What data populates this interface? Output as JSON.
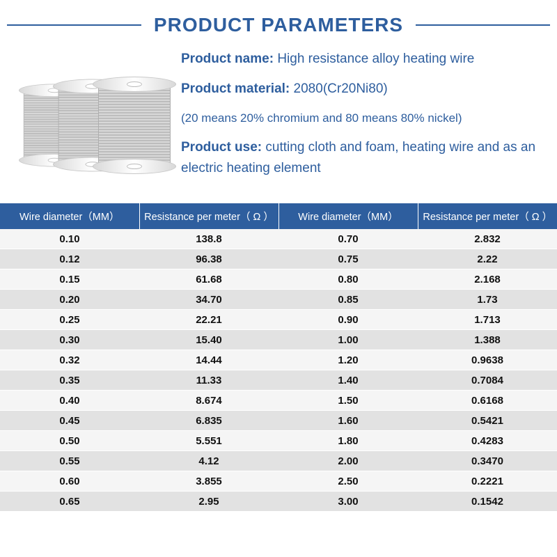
{
  "colors": {
    "brand_blue": "#2e5e9e",
    "row_light": "#f5f5f5",
    "row_dark": "#e2e2e2",
    "text_black": "#111111",
    "bg": "#ffffff"
  },
  "fonts": {
    "title_size_pt": 28,
    "info_size_pt": 19,
    "info_note_size_pt": 17,
    "table_header_size_pt": 14.5,
    "table_cell_size_pt": 15,
    "family": "Arial"
  },
  "header": {
    "title": "PRODUCT PARAMETERS"
  },
  "info": {
    "product_name_label": "Product name:",
    "product_name_value": "High resistance alloy heating wire",
    "product_material_label": "Product material:",
    "product_material_value": "2080(Cr20Ni80)",
    "material_note": "(20 means 20% chromium and 80 means 80% nickel)",
    "product_use_label": "Product use:",
    "product_use_value": "cutting cloth and foam, heating wire and as an electric heating element"
  },
  "table": {
    "type": "table",
    "header_bg": "#2e5e9e",
    "header_fg": "#ffffff",
    "columns": [
      "Wire diameter（MM）",
      "Resistance per meter（ Ω ）",
      "Wire diameter（MM）",
      "Resistance per meter（ Ω ）"
    ],
    "col_widths_pct": [
      23,
      27,
      23,
      27
    ],
    "rows": [
      [
        "0.10",
        "138.8",
        "0.70",
        "2.832"
      ],
      [
        "0.12",
        "96.38",
        "0.75",
        "2.22"
      ],
      [
        "0.15",
        "61.68",
        "0.80",
        "2.168"
      ],
      [
        "0.20",
        "34.70",
        "0.85",
        "1.73"
      ],
      [
        "0.25",
        "22.21",
        "0.90",
        "1.713"
      ],
      [
        "0.30",
        "15.40",
        "1.00",
        "1.388"
      ],
      [
        "0.32",
        "14.44",
        "1.20",
        "0.9638"
      ],
      [
        "0.35",
        "11.33",
        "1.40",
        "0.7084"
      ],
      [
        "0.40",
        "8.674",
        "1.50",
        "0.6168"
      ],
      [
        "0.45",
        "6.835",
        "1.60",
        "0.5421"
      ],
      [
        "0.50",
        "5.551",
        "1.80",
        "0.4283"
      ],
      [
        "0.55",
        "4.12",
        "2.00",
        "0.3470"
      ],
      [
        "0.60",
        "3.855",
        "2.50",
        "0.2221"
      ],
      [
        "0.65",
        "2.95",
        "3.00",
        "0.1542"
      ]
    ]
  }
}
